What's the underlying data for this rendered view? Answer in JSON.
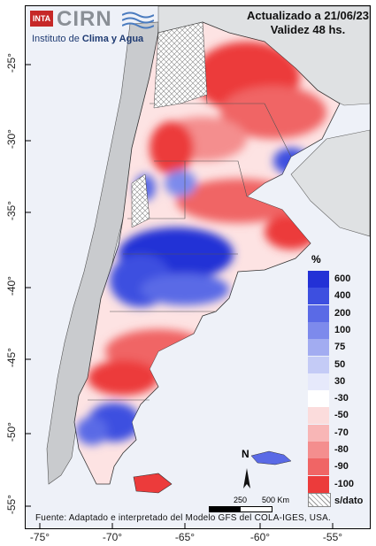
{
  "header": {
    "updated": "Actualizado a 21/06/23",
    "validity": "Validez 48 hs."
  },
  "logo": {
    "badge": "INTA",
    "name": "CIRN",
    "subtitle_prefix": "Instituto de ",
    "subtitle_highlight": "Clima y Agua"
  },
  "axes": {
    "latitudes": [
      "-25°",
      "-30°",
      "-35°",
      "-40°",
      "-45°",
      "-50°",
      "-55°"
    ],
    "longitudes": [
      "-75°",
      "-70°",
      "-65°",
      "-60°",
      "-55°"
    ]
  },
  "legend": {
    "unit": "%",
    "items": [
      {
        "label": "600",
        "color": "#2331d6"
      },
      {
        "label": "400",
        "color": "#3d4fe0"
      },
      {
        "label": "200",
        "color": "#5a6ae6"
      },
      {
        "label": "100",
        "color": "#7d8aec"
      },
      {
        "label": "75",
        "color": "#a2acf1"
      },
      {
        "label": "50",
        "color": "#c4cbf6"
      },
      {
        "label": "30",
        "color": "#e6e9fb"
      },
      {
        "label": "-30",
        "color": "#ffffff"
      },
      {
        "label": "-50",
        "color": "#fbdcdc"
      },
      {
        "label": "-70",
        "color": "#f8b6b6"
      },
      {
        "label": "-80",
        "color": "#f48e8e"
      },
      {
        "label": "-90",
        "color": "#f06565"
      },
      {
        "label": "-100",
        "color": "#ec3b3b"
      },
      {
        "label": "s/dato",
        "color": "hatch"
      }
    ]
  },
  "scale": {
    "label_mid": "250",
    "label_end": "500 Km"
  },
  "north_arrow": "N",
  "source": "Fuente: Adaptado e interpretado del Modelo GFS del COLA-IGES, USA."
}
